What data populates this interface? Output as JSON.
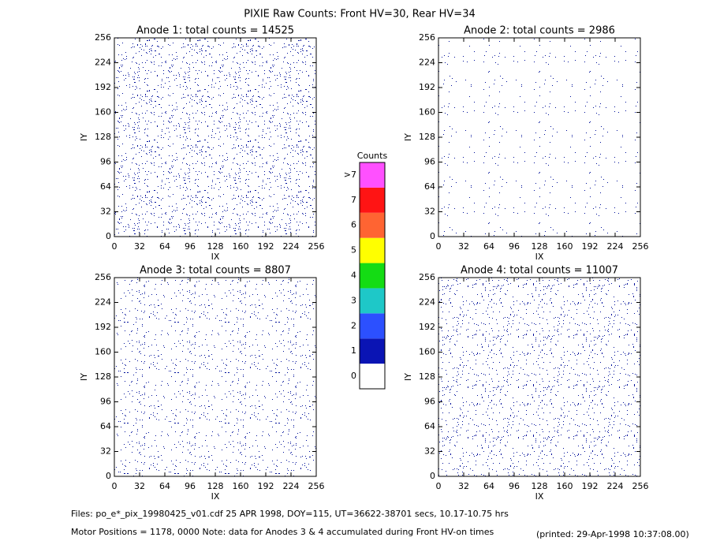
{
  "title": "PIXIE Raw Counts:  Front HV=30, Rear HV=34",
  "footer": {
    "files": "Files: po_e*_pix_19980425_v01.cdf    25 APR 1998, DOY=115, UT=36622-38701 secs, 10.17-10.75 hrs",
    "motor": "Motor Positions = 1178, 0000    Note: data for Anodes 3 & 4 accumulated during Front HV-on times",
    "printed": "(printed: 29-Apr-1998 10:37:08.00)"
  },
  "colorbar": {
    "title": "Counts",
    "ticks": [
      0,
      1,
      2,
      3,
      4,
      5,
      6,
      7,
      {
        "value": 8,
        "label": ">7"
      }
    ],
    "colors": [
      "#ffffff",
      "#0a14b4",
      "#2c50ff",
      "#1ec8c8",
      "#14dc14",
      "#ffff00",
      "#ff6432",
      "#ff1414",
      "#ff50ff"
    ]
  },
  "chart_data": [
    {
      "type": "heatmap",
      "title": "Anode 1: total counts = 14525",
      "xlabel": "IX",
      "ylabel": "IY",
      "xlim": [
        0,
        256
      ],
      "ylim": [
        0,
        256
      ],
      "xticks": [
        0,
        32,
        64,
        96,
        128,
        160,
        192,
        224,
        256
      ],
      "yticks": [
        0,
        32,
        64,
        96,
        128,
        160,
        192,
        224,
        256
      ]
    },
    {
      "type": "heatmap",
      "title": "Anode 2: total counts = 2986",
      "xlabel": "IX",
      "ylabel": "IY",
      "xlim": [
        0,
        256
      ],
      "ylim": [
        0,
        256
      ],
      "xticks": [
        0,
        32,
        64,
        96,
        128,
        160,
        192,
        224,
        256
      ],
      "yticks": [
        0,
        32,
        64,
        96,
        128,
        160,
        192,
        224,
        256
      ]
    },
    {
      "type": "heatmap",
      "title": "Anode 3: total counts = 8807",
      "xlabel": "IX",
      "ylabel": "IY",
      "xlim": [
        0,
        256
      ],
      "ylim": [
        0,
        256
      ],
      "xticks": [
        0,
        32,
        64,
        96,
        128,
        160,
        192,
        224,
        256
      ],
      "yticks": [
        0,
        32,
        64,
        96,
        128,
        160,
        192,
        224,
        256
      ]
    },
    {
      "type": "heatmap",
      "title": "Anode 4: total counts = 11007",
      "xlabel": "IX",
      "ylabel": "IY",
      "xlim": [
        0,
        256
      ],
      "ylim": [
        0,
        256
      ],
      "xticks": [
        0,
        32,
        64,
        96,
        128,
        160,
        192,
        224,
        256
      ],
      "yticks": [
        0,
        32,
        64,
        96,
        128,
        160,
        192,
        224,
        256
      ]
    }
  ]
}
